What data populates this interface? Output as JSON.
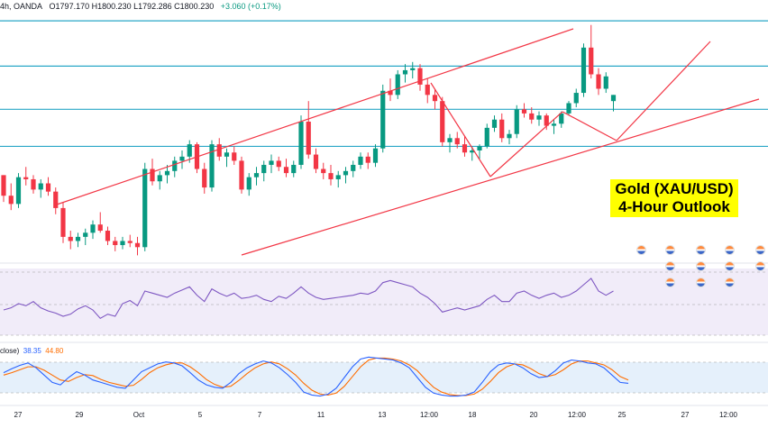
{
  "header": {
    "prefix": "4h, OANDA",
    "ohlc": "O1797.170  H1800.230  L1792.286  C1800.230",
    "change": "+3.060 (+0.17%)"
  },
  "callout": {
    "line1": "Gold (XAU/USD)",
    "line2": "4-Hour Outlook"
  },
  "stoch_header": {
    "label": "close)",
    "k": "38.35",
    "d": "44.80"
  },
  "colors": {
    "up": "#089981",
    "down": "#f23645",
    "trend": "#f23645",
    "hline": "#2aa7c7",
    "rsi": "#7e57c2",
    "stoch_k": "#2962ff",
    "stoch_d": "#ff6d00"
  },
  "chart_data": {
    "type": "candlestick",
    "symbol": "Gold (XAU/USD)",
    "timeframe": "4h",
    "x_labels": [
      "27",
      "29",
      "Oct",
      "5",
      "7",
      "11",
      "13",
      "12:00",
      "18",
      "20",
      "12:00",
      "25",
      "27",
      "12:00"
    ],
    "horizontal_levels": [
      1836,
      1814,
      1793,
      1775
    ],
    "candles": [
      [
        1761,
        1761,
        1748,
        1751
      ],
      [
        1751,
        1757,
        1744,
        1747
      ],
      [
        1747,
        1762,
        1745,
        1760
      ],
      [
        1760,
        1765,
        1756,
        1759
      ],
      [
        1759,
        1761,
        1752,
        1754
      ],
      [
        1754,
        1759,
        1750,
        1757
      ],
      [
        1757,
        1760,
        1751,
        1753
      ],
      [
        1753,
        1755,
        1742,
        1745
      ],
      [
        1745,
        1748,
        1728,
        1731
      ],
      [
        1731,
        1734,
        1725,
        1729
      ],
      [
        1729,
        1733,
        1726,
        1731
      ],
      [
        1731,
        1735,
        1727,
        1733
      ],
      [
        1733,
        1739,
        1730,
        1737
      ],
      [
        1737,
        1743,
        1733,
        1734
      ],
      [
        1734,
        1736,
        1727,
        1729
      ],
      [
        1729,
        1731,
        1724,
        1727
      ],
      [
        1727,
        1731,
        1725,
        1729
      ],
      [
        1729,
        1732,
        1726,
        1728
      ],
      [
        1728,
        1731,
        1722,
        1726
      ],
      [
        1726,
        1767,
        1724,
        1764
      ],
      [
        1764,
        1769,
        1756,
        1758
      ],
      [
        1758,
        1763,
        1754,
        1761
      ],
      [
        1761,
        1766,
        1757,
        1763
      ],
      [
        1763,
        1770,
        1760,
        1768
      ],
      [
        1768,
        1773,
        1764,
        1770
      ],
      [
        1770,
        1778,
        1767,
        1776
      ],
      [
        1776,
        1777,
        1762,
        1764
      ],
      [
        1764,
        1767,
        1752,
        1755
      ],
      [
        1755,
        1778,
        1753,
        1776
      ],
      [
        1776,
        1779,
        1768,
        1770
      ],
      [
        1770,
        1774,
        1765,
        1772
      ],
      [
        1772,
        1775,
        1766,
        1768
      ],
      [
        1768,
        1770,
        1752,
        1754
      ],
      [
        1754,
        1762,
        1751,
        1760
      ],
      [
        1760,
        1765,
        1756,
        1762
      ],
      [
        1762,
        1768,
        1758,
        1766
      ],
      [
        1766,
        1771,
        1762,
        1768
      ],
      [
        1768,
        1770,
        1763,
        1765
      ],
      [
        1765,
        1769,
        1760,
        1762
      ],
      [
        1762,
        1768,
        1760,
        1766
      ],
      [
        1766,
        1790,
        1764,
        1787
      ],
      [
        1787,
        1797,
        1769,
        1771
      ],
      [
        1771,
        1774,
        1762,
        1764
      ],
      [
        1764,
        1767,
        1759,
        1762
      ],
      [
        1762,
        1766,
        1756,
        1759
      ],
      [
        1759,
        1763,
        1755,
        1761
      ],
      [
        1761,
        1765,
        1757,
        1763
      ],
      [
        1763,
        1768,
        1760,
        1766
      ],
      [
        1766,
        1772,
        1764,
        1770
      ],
      [
        1770,
        1772,
        1764,
        1767
      ],
      [
        1767,
        1776,
        1765,
        1774
      ],
      [
        1774,
        1805,
        1772,
        1802
      ],
      [
        1802,
        1808,
        1797,
        1800
      ],
      [
        1800,
        1812,
        1798,
        1810
      ],
      [
        1810,
        1815,
        1806,
        1812
      ],
      [
        1812,
        1816,
        1808,
        1813
      ],
      [
        1813,
        1815,
        1802,
        1805
      ],
      [
        1805,
        1808,
        1796,
        1800
      ],
      [
        1800,
        1803,
        1793,
        1797
      ],
      [
        1797,
        1799,
        1775,
        1777
      ],
      [
        1777,
        1781,
        1772,
        1779
      ],
      [
        1779,
        1782,
        1774,
        1776
      ],
      [
        1776,
        1780,
        1770,
        1772
      ],
      [
        1772,
        1775,
        1768,
        1773
      ],
      [
        1773,
        1776,
        1769,
        1775
      ],
      [
        1775,
        1786,
        1774,
        1784
      ],
      [
        1784,
        1790,
        1782,
        1788
      ],
      [
        1788,
        1791,
        1777,
        1779
      ],
      [
        1779,
        1783,
        1776,
        1781
      ],
      [
        1781,
        1795,
        1779,
        1793
      ],
      [
        1793,
        1796,
        1789,
        1791
      ],
      [
        1791,
        1794,
        1786,
        1788
      ],
      [
        1788,
        1792,
        1785,
        1790
      ],
      [
        1790,
        1791,
        1783,
        1785
      ],
      [
        1785,
        1788,
        1781,
        1786
      ],
      [
        1786,
        1792,
        1784,
        1791
      ],
      [
        1791,
        1797,
        1790,
        1796
      ],
      [
        1796,
        1803,
        1794,
        1801
      ],
      [
        1801,
        1825,
        1799,
        1823
      ],
      [
        1823,
        1834,
        1808,
        1810
      ],
      [
        1810,
        1813,
        1800,
        1803
      ],
      [
        1803,
        1811,
        1801,
        1809
      ],
      [
        1797,
        1800,
        1792,
        1800
      ]
    ],
    "rsi": [
      44,
      46,
      50,
      48,
      52,
      46,
      43,
      41,
      38,
      40,
      45,
      48,
      44,
      36,
      40,
      38,
      50,
      53,
      48,
      62,
      60,
      58,
      56,
      60,
      63,
      66,
      58,
      52,
      64,
      60,
      57,
      60,
      55,
      56,
      58,
      54,
      52,
      57,
      55,
      60,
      66,
      60,
      56,
      54,
      55,
      56,
      57,
      58,
      60,
      59,
      62,
      70,
      72,
      70,
      68,
      66,
      60,
      56,
      50,
      42,
      44,
      46,
      44,
      46,
      48,
      54,
      58,
      52,
      52,
      60,
      62,
      58,
      55,
      58,
      60,
      56,
      58,
      62,
      68,
      74,
      62,
      58,
      62
    ],
    "stoch_k": [
      60,
      68,
      75,
      80,
      70,
      55,
      40,
      35,
      50,
      62,
      55,
      45,
      40,
      35,
      30,
      28,
      45,
      62,
      70,
      78,
      82,
      80,
      74,
      60,
      45,
      35,
      30,
      28,
      40,
      58,
      70,
      78,
      84,
      80,
      70,
      56,
      40,
      20,
      14,
      12,
      16,
      28,
      50,
      72,
      88,
      92,
      90,
      88,
      86,
      80,
      70,
      50,
      30,
      18,
      14,
      12,
      12,
      14,
      20,
      40,
      62,
      76,
      80,
      78,
      70,
      58,
      50,
      52,
      64,
      80,
      86,
      84,
      80,
      78,
      70,
      55,
      40,
      38
    ],
    "stoch_d": [
      55,
      60,
      66,
      72,
      72,
      65,
      55,
      45,
      42,
      50,
      56,
      54,
      46,
      40,
      36,
      32,
      34,
      46,
      60,
      70,
      76,
      80,
      80,
      72,
      60,
      46,
      36,
      30,
      32,
      44,
      58,
      70,
      78,
      82,
      78,
      68,
      55,
      38,
      24,
      16,
      14,
      18,
      32,
      52,
      72,
      86,
      90,
      90,
      88,
      84,
      76,
      64,
      46,
      30,
      20,
      15,
      13,
      13,
      16,
      26,
      42,
      60,
      72,
      78,
      76,
      68,
      58,
      52,
      56,
      66,
      78,
      84,
      84,
      80,
      76,
      66,
      52,
      45
    ]
  }
}
